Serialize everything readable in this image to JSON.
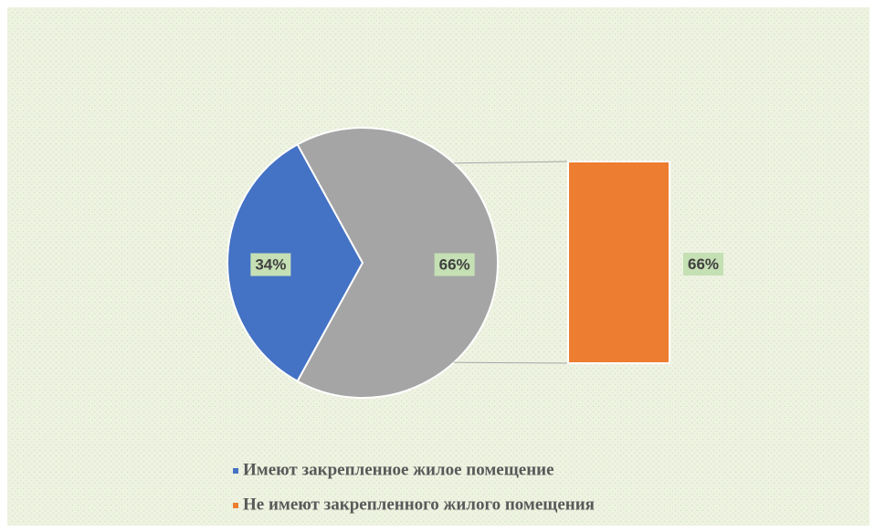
{
  "chart_data": {
    "type": "bar-of-pie",
    "categories": [
      "Имеют закрепленное жилое помещение",
      "Не имеют закрепленного жилого помещения"
    ],
    "legend_colors": [
      "#4472c4",
      "#ed7d31"
    ],
    "pie": {
      "values": [
        34,
        66
      ],
      "value_labels": [
        "34%",
        "66%"
      ],
      "colors": [
        "#4472c4",
        "#a5a5a5"
      ]
    },
    "bar": {
      "values": [
        66
      ],
      "value_labels": [
        "66%"
      ],
      "colors": [
        "#ed7d31"
      ]
    },
    "legend": "bottom"
  }
}
